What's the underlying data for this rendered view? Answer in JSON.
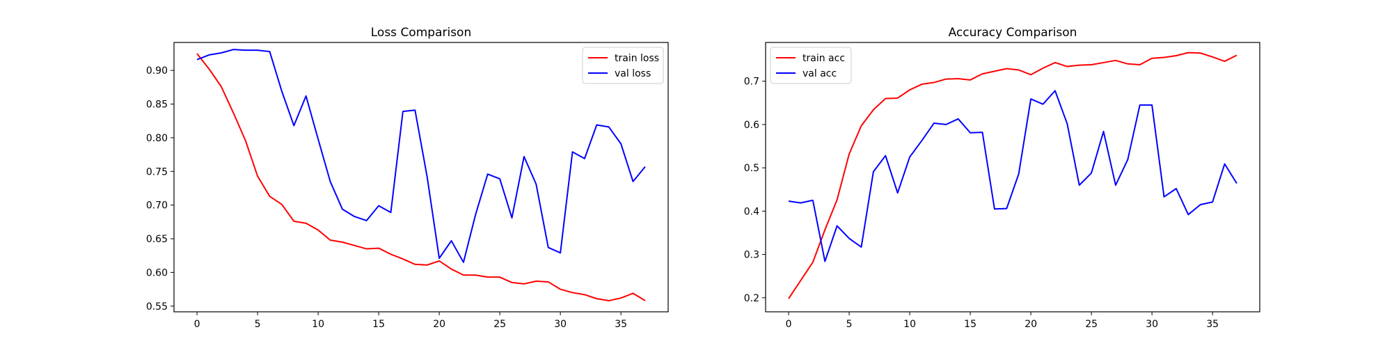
{
  "chart_data": [
    {
      "type": "line",
      "title": "Loss Comparison",
      "xlabel": "",
      "ylabel": "",
      "xlim": [
        -1.9,
        38.9
      ],
      "ylim": [
        0.5415,
        0.9415
      ],
      "xticks": [
        0,
        5,
        10,
        15,
        20,
        25,
        30,
        35
      ],
      "yticks": [
        0.55,
        0.6,
        0.65,
        0.7,
        0.75,
        0.8,
        0.85,
        0.9
      ],
      "xtick_labels": [
        "0",
        "5",
        "10",
        "15",
        "20",
        "25",
        "30",
        "35"
      ],
      "ytick_labels": [
        "0.55",
        "0.60",
        "0.65",
        "0.70",
        "0.75",
        "0.80",
        "0.85",
        "0.90"
      ],
      "grid": false,
      "legend_position": "top-right",
      "x": [
        0,
        1,
        2,
        3,
        4,
        5,
        6,
        7,
        8,
        9,
        10,
        11,
        12,
        13,
        14,
        15,
        16,
        17,
        18,
        19,
        20,
        21,
        22,
        23,
        24,
        25,
        26,
        27,
        28,
        29,
        30,
        31,
        32,
        33,
        34,
        35,
        36,
        37
      ],
      "series": [
        {
          "name": "train loss",
          "color": "#ff0000",
          "values": [
            0.925,
            0.902,
            0.876,
            0.837,
            0.796,
            0.743,
            0.713,
            0.701,
            0.676,
            0.673,
            0.663,
            0.648,
            0.645,
            0.64,
            0.635,
            0.636,
            0.627,
            0.62,
            0.612,
            0.611,
            0.617,
            0.605,
            0.596,
            0.596,
            0.593,
            0.593,
            0.585,
            0.583,
            0.587,
            0.586,
            0.575,
            0.57,
            0.567,
            0.561,
            0.558,
            0.562,
            0.569,
            0.558
          ]
        },
        {
          "name": "val loss",
          "color": "#0000ff",
          "values": [
            0.916,
            0.923,
            0.926,
            0.931,
            0.93,
            0.93,
            0.928,
            0.869,
            0.818,
            0.862,
            0.798,
            0.735,
            0.694,
            0.683,
            0.677,
            0.699,
            0.689,
            0.839,
            0.841,
            0.742,
            0.621,
            0.647,
            0.615,
            0.686,
            0.746,
            0.739,
            0.681,
            0.772,
            0.731,
            0.637,
            0.629,
            0.779,
            0.769,
            0.819,
            0.816,
            0.791,
            0.735,
            0.757
          ]
        }
      ]
    },
    {
      "type": "line",
      "title": "Accuracy Comparison",
      "xlabel": "",
      "ylabel": "",
      "xlim": [
        -1.9,
        38.9
      ],
      "ylim": [
        0.1675,
        0.7895
      ],
      "xticks": [
        0,
        5,
        10,
        15,
        20,
        25,
        30,
        35
      ],
      "yticks": [
        0.2,
        0.3,
        0.4,
        0.5,
        0.6,
        0.7
      ],
      "xtick_labels": [
        "0",
        "5",
        "10",
        "15",
        "20",
        "25",
        "30",
        "35"
      ],
      "ytick_labels": [
        "0.2",
        "0.3",
        "0.4",
        "0.5",
        "0.6",
        "0.7"
      ],
      "grid": false,
      "legend_position": "top-left",
      "x": [
        0,
        1,
        2,
        3,
        4,
        5,
        6,
        7,
        8,
        9,
        10,
        11,
        12,
        13,
        14,
        15,
        16,
        17,
        18,
        19,
        20,
        21,
        22,
        23,
        24,
        25,
        26,
        27,
        28,
        29,
        30,
        31,
        32,
        33,
        34,
        35,
        36,
        37
      ],
      "series": [
        {
          "name": "train acc",
          "color": "#ff0000",
          "values": [
            0.198,
            0.24,
            0.282,
            0.357,
            0.426,
            0.532,
            0.597,
            0.634,
            0.66,
            0.661,
            0.68,
            0.693,
            0.697,
            0.705,
            0.706,
            0.703,
            0.717,
            0.723,
            0.729,
            0.726,
            0.715,
            0.73,
            0.743,
            0.734,
            0.737,
            0.738,
            0.743,
            0.748,
            0.74,
            0.738,
            0.753,
            0.755,
            0.759,
            0.766,
            0.765,
            0.756,
            0.746,
            0.76
          ]
        },
        {
          "name": "val acc",
          "color": "#0000ff",
          "values": [
            0.423,
            0.419,
            0.425,
            0.284,
            0.366,
            0.337,
            0.317,
            0.491,
            0.528,
            0.442,
            0.525,
            0.563,
            0.603,
            0.6,
            0.613,
            0.581,
            0.582,
            0.405,
            0.406,
            0.486,
            0.659,
            0.647,
            0.678,
            0.602,
            0.46,
            0.488,
            0.584,
            0.46,
            0.519,
            0.645,
            0.645,
            0.433,
            0.452,
            0.392,
            0.415,
            0.421,
            0.509,
            0.464
          ]
        }
      ]
    }
  ]
}
